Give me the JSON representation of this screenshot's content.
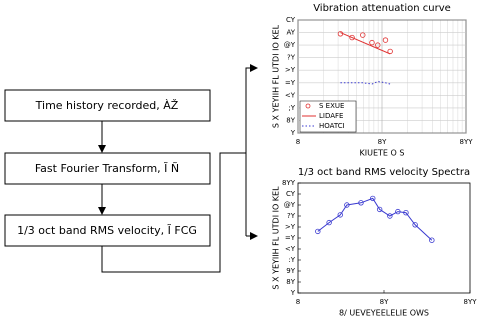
{
  "nodes": [
    {
      "label": "Time history recorded, ÀŽ"
    },
    {
      "label": "Fast Fourier Transform, Ĩ Ñ"
    },
    {
      "label": "1/3 oct band RMS velocity, Ĩ FCG"
    }
  ],
  "chart_data": [
    {
      "type": "scatter",
      "title": "Vibration attenuation curve",
      "x_label": "KIUETE O S",
      "y_label": "S X YEYIIH FL UTDI IO KEL",
      "xlog": true,
      "grid": true,
      "legend": "lower left",
      "xlim": [
        1,
        100
      ],
      "xticks": [
        {
          "value": 1,
          "label": "8"
        },
        {
          "value": 10,
          "label": "8Y"
        },
        {
          "value": 100,
          "label": "8YY"
        }
      ],
      "ylim": [
        0,
        90
      ],
      "yticks": [
        {
          "value": 0,
          "label": "Y"
        },
        {
          "value": 10,
          "label": "8Y"
        },
        {
          "value": 20,
          "label": ";Y"
        },
        {
          "value": 30,
          "label": "<Y"
        },
        {
          "value": 40,
          "label": "=Y"
        },
        {
          "value": 50,
          "label": ">Y"
        },
        {
          "value": 60,
          "label": "?Y"
        },
        {
          "value": 70,
          "label": "@Y"
        },
        {
          "value": 80,
          "label": "AY"
        },
        {
          "value": 90,
          "label": "CY"
        }
      ],
      "series": [
        {
          "name": "S EXUE",
          "color": "#e03030",
          "style": "marker",
          "x": [
            3.2,
            4.4,
            5.9,
            7.6,
            8.9,
            11,
            12.5
          ],
          "values": [
            79,
            76,
            78,
            72,
            70,
            74,
            65
          ]
        },
        {
          "name": "LIDAFE",
          "color": "#e03030",
          "style": "line",
          "x": [
            3.2,
            12.5
          ],
          "values": [
            80,
            63
          ]
        },
        {
          "name": "HOATCI",
          "color": "#3a3ad0",
          "style": "dotted",
          "x": [
            3.2,
            4.4,
            5.9,
            7.6,
            8.9,
            11,
            12.5
          ],
          "values": [
            40,
            40,
            40,
            39,
            41,
            40,
            39
          ]
        }
      ]
    },
    {
      "type": "line",
      "title": "1/3 oct band RMS velocity Spectra",
      "x_label": "8/ UEVEYEELELIE OWS",
      "y_label": "S X YEYIIH FL UTDI IO KEL",
      "xlog": true,
      "grid": false,
      "xlim": [
        1,
        100
      ],
      "xticks": [
        {
          "value": 1,
          "label": "8"
        },
        {
          "value": 10,
          "label": "8Y"
        },
        {
          "value": 100,
          "label": "8YY"
        }
      ],
      "ylim": [
        0,
        100
      ],
      "yticks": [
        {
          "value": 0,
          "label": "Y"
        },
        {
          "value": 10,
          "label": "8Y"
        },
        {
          "value": 20,
          "label": "9Y"
        },
        {
          "value": 30,
          "label": ":Y"
        },
        {
          "value": 40,
          "label": "<Y"
        },
        {
          "value": 50,
          "label": "=Y"
        },
        {
          "value": 60,
          "label": ">Y"
        },
        {
          "value": 70,
          "label": "?Y"
        },
        {
          "value": 80,
          "label": "@Y"
        },
        {
          "value": 90,
          "label": "CY"
        },
        {
          "value": 100,
          "label": "8YY"
        }
      ],
      "series": [
        {
          "color": "#3a3ad0",
          "x": [
            1.7,
            2.3,
            3.1,
            3.7,
            5.4,
            7.4,
            8.9,
            11.7,
            14.5,
            18,
            23,
            36
          ],
          "values": [
            56,
            64,
            71,
            80,
            82,
            86,
            76,
            70,
            74,
            73,
            62,
            48
          ]
        }
      ]
    }
  ]
}
